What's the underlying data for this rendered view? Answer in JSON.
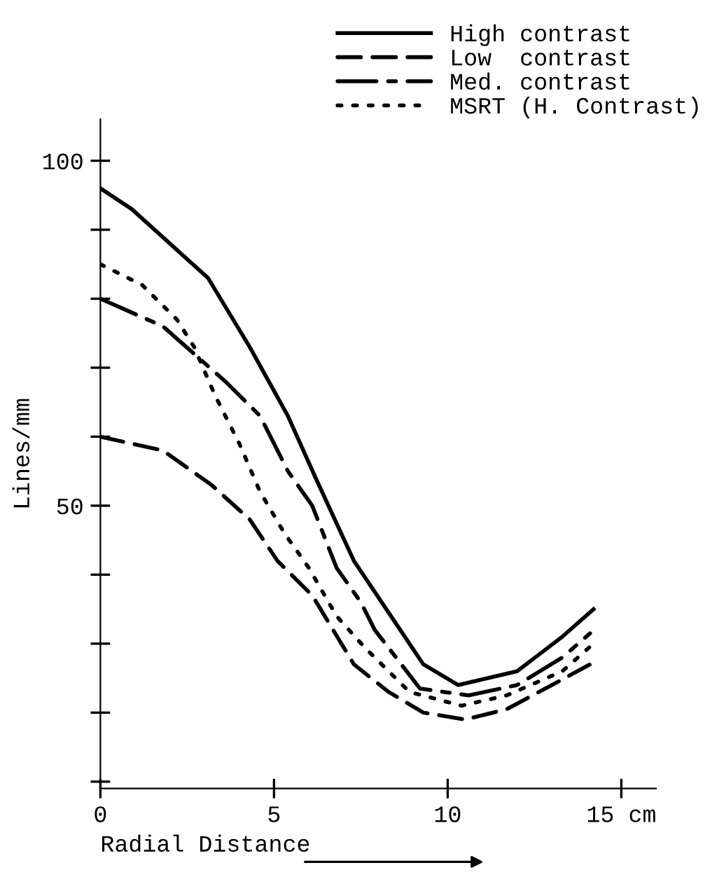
{
  "chart_data": {
    "type": "line",
    "xlabel": "Radial Distance",
    "ylabel": "Lines/mm",
    "xlim": [
      0,
      16
    ],
    "ylim": [
      9,
      106
    ],
    "xticks": [
      0,
      5,
      10,
      {
        "value": 15,
        "label": "15 cm"
      }
    ],
    "yticks": [
      {
        "value": 10,
        "label": null
      },
      {
        "value": 20,
        "label": null
      },
      {
        "value": 30,
        "label": null
      },
      {
        "value": 40,
        "label": null
      },
      50,
      {
        "value": 60,
        "label": null
      },
      {
        "value": 70,
        "label": null
      },
      {
        "value": 80,
        "label": null
      },
      {
        "value": 90,
        "label": null
      },
      100
    ],
    "grid": false,
    "legend": "top right",
    "series": [
      {
        "name": "High contrast",
        "color": "#000000",
        "line_style": "solid",
        "x": [
          0,
          0.9,
          3.1,
          4.3,
          5.4,
          6.2,
          7.3,
          8.5,
          9.3,
          10.3,
          12,
          13.3,
          14.2
        ],
        "values": [
          96,
          93,
          83,
          73,
          63,
          54,
          42,
          33,
          27,
          24,
          26,
          31,
          35
        ]
      },
      {
        "name": "Low  contrast",
        "color": "#000000",
        "line_style": "dashed",
        "x": [
          0,
          1.8,
          3.2,
          4.3,
          5.1,
          6.1,
          7.3,
          8.3,
          9.3,
          10.5,
          11.7,
          13,
          14.1
        ],
        "values": [
          60,
          58,
          53,
          48,
          42,
          37,
          27,
          23,
          20,
          19,
          20.5,
          24,
          27
        ]
      },
      {
        "name": "Med. contrast",
        "color": "#000000",
        "line_style": "dashdot",
        "x": [
          0,
          1.8,
          3.6,
          4.6,
          5.4,
          6.1,
          6.8,
          7.5,
          7.9,
          9.2,
          10.6,
          12,
          13.3,
          14.1
        ],
        "values": [
          80,
          76,
          68,
          63,
          55,
          50,
          41,
          36,
          32,
          23.5,
          22.5,
          24,
          28,
          31.5
        ]
      },
      {
        "name": "MSRT (H. Contrast)",
        "color": "#000000",
        "line_style": "dotted",
        "x": [
          0,
          1.2,
          2.2,
          2.7,
          3.3,
          4,
          4.6,
          5.3,
          6,
          6.8,
          7.6,
          8.9,
          10.4,
          11.7,
          13.3,
          14.2
        ],
        "values": [
          85,
          82,
          77,
          73,
          66,
          59,
          52,
          46,
          41,
          34,
          29.5,
          23,
          21,
          22.5,
          26,
          30
        ]
      }
    ]
  }
}
